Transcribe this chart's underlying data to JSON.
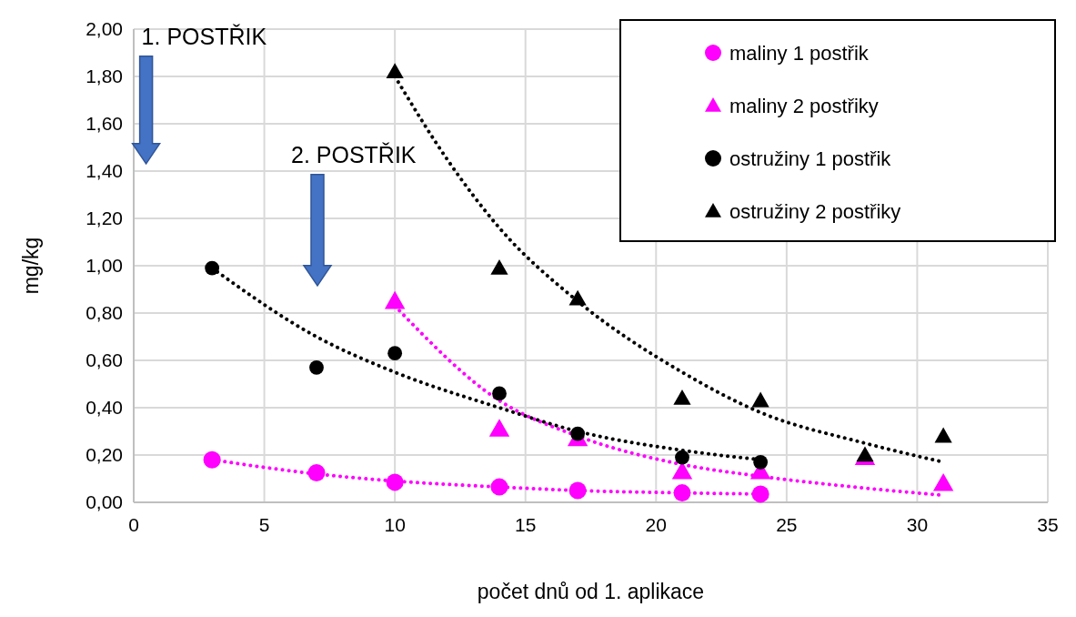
{
  "chart_data": {
    "type": "scatter",
    "xlabel": "počet dnů od 1. aplikace",
    "ylabel": "mg/kg",
    "xlim": [
      0,
      35
    ],
    "xticks": [
      0,
      5,
      10,
      15,
      20,
      25,
      30,
      35
    ],
    "ylim": [
      0,
      2
    ],
    "yticks": [
      {
        "value": 0,
        "label": "0,00"
      },
      {
        "value": 0.2,
        "label": "0,20"
      },
      {
        "value": 0.4,
        "label": "0,40"
      },
      {
        "value": 0.6,
        "label": "0,60"
      },
      {
        "value": 0.8,
        "label": "0,80"
      },
      {
        "value": 1,
        "label": "1,00"
      },
      {
        "value": 1.2,
        "label": "1,20"
      },
      {
        "value": 1.4,
        "label": "1,40"
      },
      {
        "value": 1.6,
        "label": "1,60"
      },
      {
        "value": 1.8,
        "label": "1,80"
      },
      {
        "value": 2,
        "label": "2,00"
      }
    ],
    "grid": true,
    "legend": "top right",
    "annotations": [
      "1. POSTŘIK",
      "2. POSTŘIK"
    ],
    "series": [
      {
        "name": "maliny 1 postřik",
        "color": "#ff00ff",
        "marker": "circle",
        "x": [
          3,
          7,
          10,
          14,
          17,
          21,
          24
        ],
        "values": [
          0.18,
          0.125,
          0.085,
          0.065,
          0.05,
          0.04,
          0.035
        ]
      },
      {
        "name": "maliny 2 postřiky",
        "color": "#ff00ff",
        "marker": "triangle",
        "x": [
          10,
          14,
          17,
          21,
          24,
          28,
          31
        ],
        "values": [
          0.85,
          0.31,
          0.27,
          0.13,
          0.13,
          0.19,
          0.08
        ]
      },
      {
        "name": "ostružiny 1 postřik",
        "color": "#000000",
        "marker": "circle",
        "x": [
          3,
          7,
          10,
          14,
          17,
          21,
          24
        ],
        "values": [
          0.99,
          0.57,
          0.63,
          0.46,
          0.29,
          0.19,
          0.17
        ]
      },
      {
        "name": "ostružiny 2 postřiky",
        "color": "#000000",
        "marker": "triangle",
        "x": [
          10,
          14,
          17,
          21,
          24,
          28,
          31
        ],
        "values": [
          1.82,
          0.99,
          0.86,
          0.44,
          0.43,
          0.2,
          0.28
        ]
      },
      {
        "type": "line",
        "color": "#ff00ff",
        "line_style": "dotted",
        "x": [
          3,
          7,
          10,
          14,
          17,
          21,
          24
        ],
        "values": [
          0.18,
          0.12,
          0.09,
          0.065,
          0.05,
          0.04,
          0.035
        ]
      },
      {
        "type": "line",
        "color": "#ff00ff",
        "line_style": "dotted",
        "x": [
          10,
          14,
          17,
          21,
          24,
          28,
          31
        ],
        "values": [
          0.83,
          0.43,
          0.28,
          0.16,
          0.11,
          0.06,
          0.03
        ]
      },
      {
        "type": "line",
        "color": "#000000",
        "line_style": "dotted",
        "x": [
          3,
          7,
          10,
          14,
          17,
          21,
          24
        ],
        "values": [
          0.99,
          0.7,
          0.55,
          0.4,
          0.3,
          0.22,
          0.18
        ]
      },
      {
        "type": "line",
        "color": "#000000",
        "line_style": "dotted",
        "x": [
          10,
          12,
          14,
          17,
          21,
          24,
          28,
          31
        ],
        "values": [
          1.8,
          1.45,
          1.16,
          0.85,
          0.55,
          0.38,
          0.25,
          0.17
        ]
      }
    ]
  }
}
